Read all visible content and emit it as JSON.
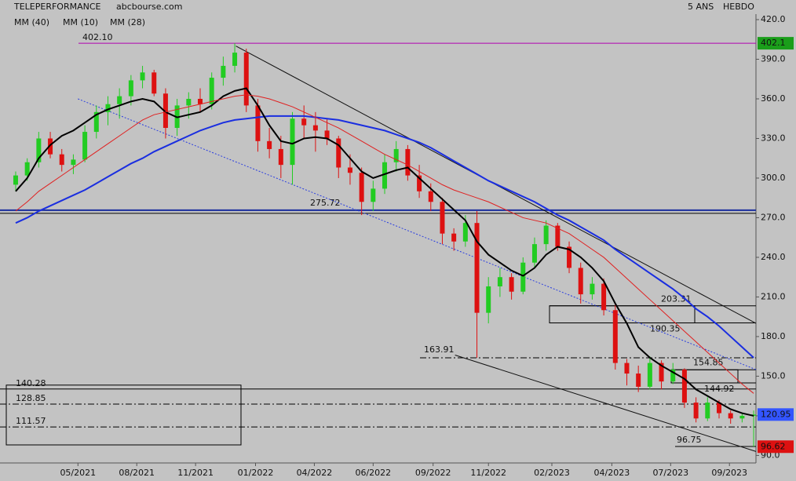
{
  "chart_data": {
    "type": "candlestick",
    "title": "TELEPERFORMANCE",
    "source": "abcbourse.com",
    "period": "5 ANS",
    "interval": "HEBDO",
    "ylim": [
      84.3,
      420
    ],
    "xlim": [
      -1.36,
      64.2
    ],
    "yticks": [
      {
        "value": 420,
        "label": "420.0"
      },
      {
        "value": 390,
        "label": "390.0"
      },
      {
        "value": 360,
        "label": "360.0"
      },
      {
        "value": 330,
        "label": "330.0"
      },
      {
        "value": 300,
        "label": "300.0"
      },
      {
        "value": 270,
        "label": "270.0"
      },
      {
        "value": 240,
        "label": "240.0"
      },
      {
        "value": 210,
        "label": "210.0"
      },
      {
        "value": 180,
        "label": "180.0"
      },
      {
        "value": 150,
        "label": "150.0"
      },
      {
        "value": 120,
        "label": "120.0"
      },
      {
        "value": 90,
        "label": "90.0"
      }
    ],
    "xticks": [
      {
        "value": 5.4,
        "label": "05/2021"
      },
      {
        "value": 10.5,
        "label": "08/2021"
      },
      {
        "value": 15.6,
        "label": "11/2021"
      },
      {
        "value": 20.8,
        "label": "01/2022"
      },
      {
        "value": 25.9,
        "label": "04/2022"
      },
      {
        "value": 31.0,
        "label": "06/2022"
      },
      {
        "value": 36.2,
        "label": "09/2022"
      },
      {
        "value": 41.0,
        "label": "11/2022"
      },
      {
        "value": 46.5,
        "label": "02/2023"
      },
      {
        "value": 51.7,
        "label": "04/2023"
      },
      {
        "value": 56.8,
        "label": "07/2023"
      },
      {
        "value": 61.9,
        "label": "09/2023"
      }
    ],
    "up_color": "#22cc22",
    "down_color": "#dd1111",
    "open": [
      295,
      302,
      312,
      330,
      318,
      310,
      314,
      335,
      350,
      356,
      362,
      374,
      380,
      364,
      338,
      355,
      360,
      356,
      376,
      385,
      395,
      355,
      328,
      322,
      310,
      345,
      340,
      336,
      330,
      308,
      304,
      282,
      292,
      312,
      322,
      302,
      290,
      282,
      258,
      252,
      266,
      198,
      218,
      225,
      214,
      236,
      250,
      264,
      248,
      232,
      212,
      220,
      200,
      160,
      152,
      142,
      160,
      146,
      155,
      130,
      118,
      130,
      122,
      118,
      120
    ],
    "high": [
      305,
      315,
      335,
      335,
      322,
      318,
      340,
      355,
      362,
      368,
      378,
      385,
      382,
      368,
      360,
      365,
      368,
      380,
      392,
      402.1,
      398,
      360,
      338,
      332,
      350,
      355,
      350,
      345,
      332,
      318,
      308,
      298,
      318,
      328,
      325,
      310,
      296,
      285,
      262,
      272,
      275,
      225,
      232,
      228,
      240,
      255,
      268,
      266,
      252,
      236,
      225,
      224,
      204,
      163,
      158,
      165,
      162,
      160,
      156,
      134,
      134,
      132,
      124,
      122,
      124
    ],
    "low": [
      290,
      298,
      308,
      315,
      305,
      303,
      312,
      330,
      340,
      345,
      355,
      368,
      362,
      330,
      332,
      345,
      350,
      352,
      370,
      380,
      350,
      320,
      315,
      300,
      295,
      330,
      320,
      325,
      300,
      295,
      272,
      275,
      288,
      305,
      298,
      285,
      275,
      250,
      245,
      248,
      164,
      190,
      210,
      208,
      212,
      232,
      245,
      245,
      228,
      205,
      208,
      196,
      155,
      143,
      138,
      140,
      140,
      144,
      126,
      115,
      116,
      118,
      114,
      115,
      96.75
    ],
    "close": [
      302,
      312,
      330,
      318,
      310,
      314,
      335,
      350,
      356,
      362,
      374,
      380,
      364,
      338,
      355,
      360,
      356,
      376,
      385,
      395,
      355,
      328,
      322,
      310,
      345,
      340,
      336,
      330,
      308,
      304,
      282,
      292,
      312,
      322,
      302,
      290,
      282,
      258,
      252,
      266,
      198,
      218,
      225,
      214,
      236,
      250,
      264,
      248,
      232,
      212,
      220,
      200,
      160,
      152,
      142,
      160,
      146,
      155,
      130,
      118,
      130,
      122,
      118,
      120,
      120.95
    ],
    "series": [
      {
        "name": "MM (40)",
        "color": "#1a2ee0",
        "values": [
          266,
          270,
          275,
          279,
          283,
          287,
          291,
          296,
          301,
          306,
          311,
          315,
          320,
          324,
          328,
          332,
          336,
          339,
          342,
          344,
          345,
          346,
          347,
          347,
          347,
          347,
          346,
          345,
          344,
          342,
          340,
          338,
          336,
          333,
          330,
          327,
          323,
          318,
          313,
          308,
          303,
          298,
          294,
          290,
          286,
          282,
          277,
          272,
          268,
          263,
          258,
          253,
          246,
          240,
          234,
          228,
          222,
          216,
          209,
          201,
          195,
          188,
          180,
          172,
          164
        ]
      },
      {
        "name": "MM (10)",
        "color": "#000000",
        "values": [
          290,
          300,
          315,
          325,
          332,
          336,
          342,
          348,
          352,
          355,
          358,
          360,
          358,
          350,
          346,
          348,
          350,
          355,
          362,
          366,
          368,
          355,
          340,
          328,
          326,
          330,
          331,
          330,
          325,
          315,
          305,
          300,
          303,
          306,
          308,
          300,
          292,
          284,
          276,
          268,
          252,
          242,
          236,
          230,
          226,
          232,
          242,
          248,
          246,
          240,
          232,
          222,
          205,
          190,
          172,
          164,
          158,
          153,
          148,
          140,
          135,
          130,
          125,
          122,
          120
        ]
      },
      {
        "name": "MM (28)",
        "color": "#e02020",
        "values": [
          275,
          282,
          290,
          296,
          302,
          308,
          314,
          320,
          326,
          332,
          338,
          344,
          348,
          350,
          352,
          354,
          356,
          358,
          360,
          362,
          363,
          362,
          360,
          357,
          354,
          350,
          346,
          342,
          338,
          333,
          328,
          323,
          318,
          314,
          310,
          305,
          300,
          295,
          291,
          288,
          285,
          282,
          278,
          274,
          270,
          268,
          266,
          262,
          258,
          252,
          246,
          240,
          232,
          224,
          216,
          208,
          200,
          192,
          184,
          176,
          168,
          160,
          152,
          144,
          137
        ]
      }
    ],
    "levels": [
      {
        "value": 402.1,
        "label": "402.10",
        "color": "#b000b0"
      },
      {
        "value": 275.72,
        "color": "#1a2e9e"
      },
      {
        "value": 203.31
      },
      {
        "value": 190.35
      },
      {
        "value": 163.91
      },
      {
        "value": 154.85
      },
      {
        "value": 144.92
      },
      {
        "value": 140.28
      },
      {
        "value": 128.85
      },
      {
        "value": 111.57
      },
      {
        "value": 96.75
      }
    ],
    "trendlines": [
      {
        "x": [
          19.1,
          64.2
        ],
        "y": [
          400,
          190
        ]
      },
      {
        "x": [
          38.1,
          64.2
        ],
        "y": [
          166,
          93
        ]
      },
      {
        "x": [
          5.4,
          64.2
        ],
        "y": [
          360,
          155
        ]
      }
    ],
    "price_tags": [
      {
        "value": 402.1,
        "color": "#1a9e1a"
      },
      {
        "value": 120.95,
        "color": "#3355ff"
      },
      {
        "value": 96.62,
        "color": "#dd1111"
      }
    ]
  }
}
